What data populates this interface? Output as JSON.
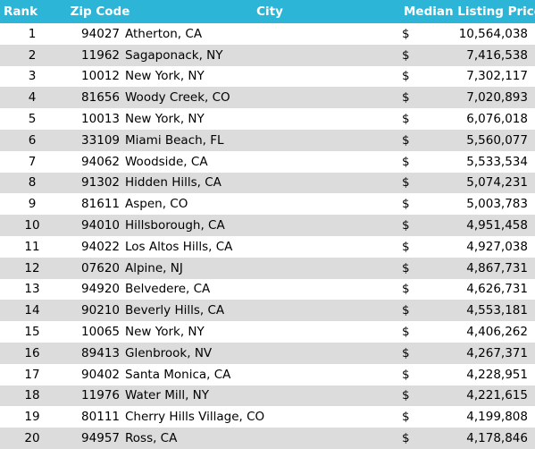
{
  "header": {
    "rank": "Rank",
    "zip": "Zip Code",
    "city": "City",
    "price": "Median Listing Price"
  },
  "rows": [
    {
      "rank": "1",
      "zip": "94027",
      "city": "Atherton, CA",
      "currency": "$",
      "price": "10,564,038"
    },
    {
      "rank": "2",
      "zip": "11962",
      "city": "Sagaponack, NY",
      "currency": "$",
      "price": "7,416,538"
    },
    {
      "rank": "3",
      "zip": "10012",
      "city": "New York, NY",
      "currency": "$",
      "price": "7,302,117"
    },
    {
      "rank": "4",
      "zip": "81656",
      "city": "Woody Creek, CO",
      "currency": "$",
      "price": "7,020,893"
    },
    {
      "rank": "5",
      "zip": "10013",
      "city": "New York, NY",
      "currency": "$",
      "price": "6,076,018"
    },
    {
      "rank": "6",
      "zip": "33109",
      "city": "Miami Beach, FL",
      "currency": "$",
      "price": "5,560,077"
    },
    {
      "rank": "7",
      "zip": "94062",
      "city": "Woodside, CA",
      "currency": "$",
      "price": "5,533,534"
    },
    {
      "rank": "8",
      "zip": "91302",
      "city": "Hidden Hills, CA",
      "currency": "$",
      "price": "5,074,231"
    },
    {
      "rank": "9",
      "zip": "81611",
      "city": "Aspen, CO",
      "currency": "$",
      "price": "5,003,783"
    },
    {
      "rank": "10",
      "zip": "94010",
      "city": "Hillsborough, CA",
      "currency": "$",
      "price": "4,951,458"
    },
    {
      "rank": "11",
      "zip": "94022",
      "city": "Los Altos Hills, CA",
      "currency": "$",
      "price": "4,927,038"
    },
    {
      "rank": "12",
      "zip": "07620",
      "city": "Alpine, NJ",
      "currency": "$",
      "price": "4,867,731"
    },
    {
      "rank": "13",
      "zip": "94920",
      "city": "Belvedere, CA",
      "currency": "$",
      "price": "4,626,731"
    },
    {
      "rank": "14",
      "zip": "90210",
      "city": "Beverly Hills, CA",
      "currency": "$",
      "price": "4,553,181"
    },
    {
      "rank": "15",
      "zip": "10065",
      "city": "New York, NY",
      "currency": "$",
      "price": "4,406,262"
    },
    {
      "rank": "16",
      "zip": "89413",
      "city": "Glenbrook, NV",
      "currency": "$",
      "price": "4,267,371"
    },
    {
      "rank": "17",
      "zip": "90402",
      "city": "Santa Monica, CA",
      "currency": "$",
      "price": "4,228,951"
    },
    {
      "rank": "18",
      "zip": "11976",
      "city": "Water Mill, NY",
      "currency": "$",
      "price": "4,221,615"
    },
    {
      "rank": "19",
      "zip": "80111",
      "city": "Cherry Hills Village, CO",
      "currency": "$",
      "price": "4,199,808"
    },
    {
      "rank": "20",
      "zip": "94957",
      "city": "Ross, CA",
      "currency": "$",
      "price": "4,178,846"
    }
  ],
  "colors": {
    "header_bg": "#2cb5d6",
    "header_text": "#ffffff",
    "alt_row_bg": "#dcdcdc"
  }
}
